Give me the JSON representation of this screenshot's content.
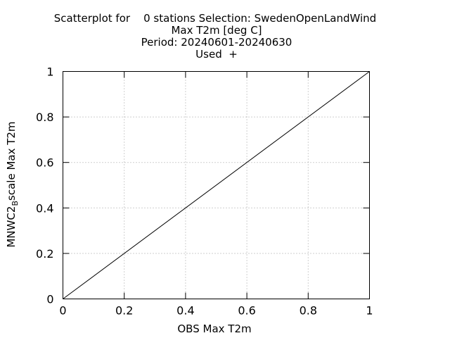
{
  "chart_data": {
    "type": "scatter",
    "title": [
      "Scatterplot for    0 stations Selection: SwedenOpenLandWind",
      "Max T2m [deg C]",
      "Period: 20240601-20240630",
      "Used  +"
    ],
    "xlabel": "OBS Max T2m",
    "ylabel_parts": [
      "MNWC2",
      "B",
      "scale Max T2m"
    ],
    "xlim": [
      0,
      1
    ],
    "ylim": [
      0,
      1
    ],
    "xticks": [
      0,
      0.2,
      0.4,
      0.6,
      0.8,
      1
    ],
    "yticks": [
      0,
      0.2,
      0.4,
      0.6,
      0.8,
      1
    ],
    "xtick_labels": [
      "0",
      "0.2",
      "0.4",
      "0.6",
      "0.8",
      "1"
    ],
    "ytick_labels": [
      "0",
      "0.2",
      "0.4",
      "0.6",
      "0.8",
      "1"
    ],
    "grid": true,
    "series": [],
    "reference_line": {
      "x": [
        0,
        1
      ],
      "y": [
        0,
        1
      ]
    }
  },
  "colors": {
    "axis": "#000000",
    "grid": "#a0a0a0",
    "background": "#ffffff"
  }
}
